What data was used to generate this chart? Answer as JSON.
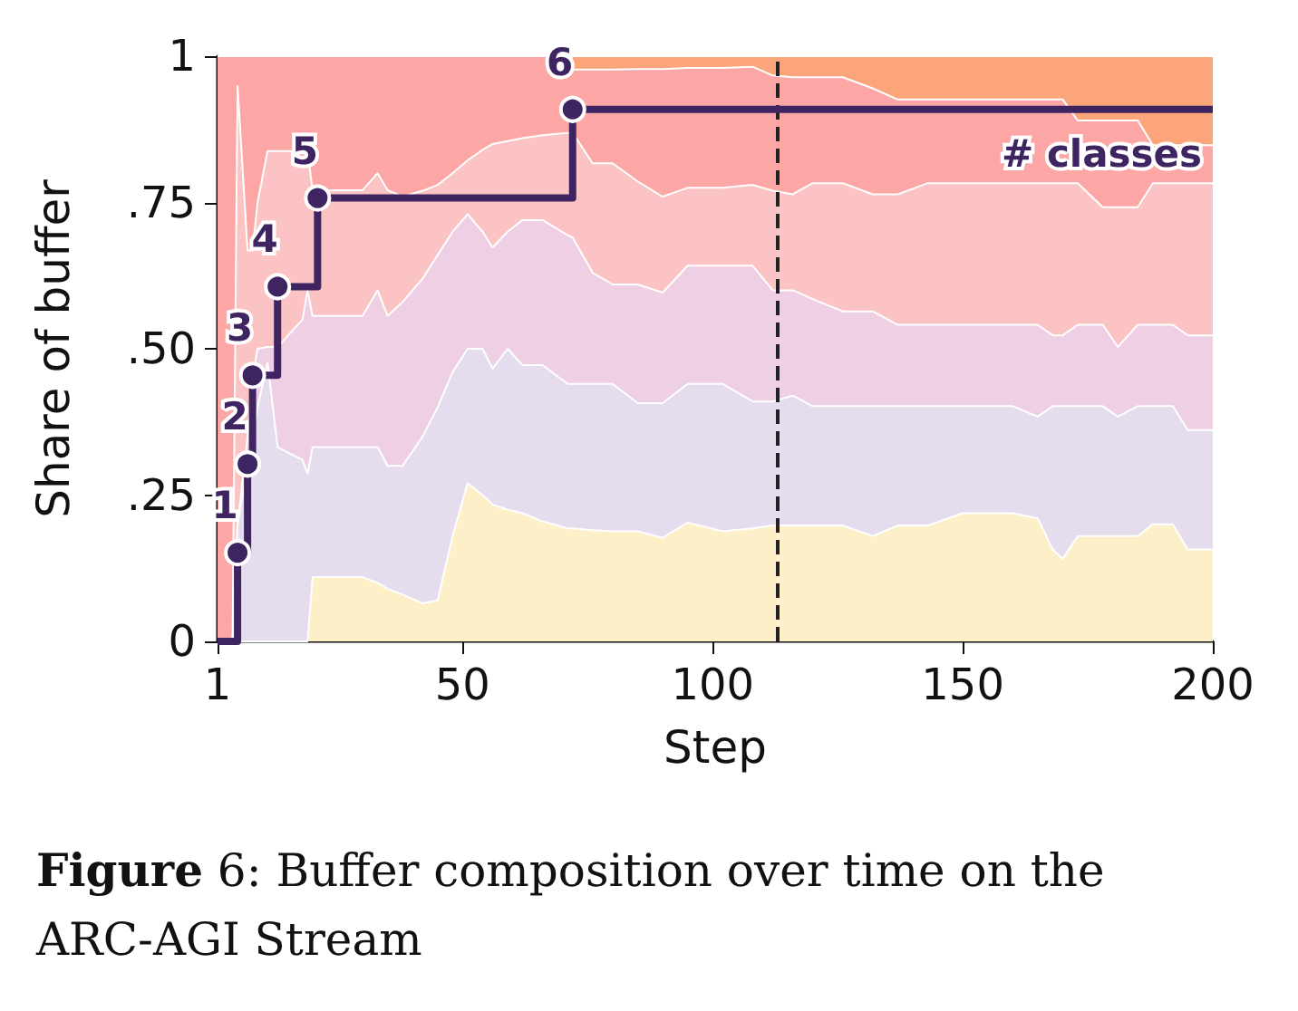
{
  "chart_data": {
    "type": "area",
    "stacked": true,
    "xlabel": "Step",
    "ylabel": "Share of buffer",
    "annotations": [
      "Figure 6: Buffer composition over time on the ARC-AGI Stream"
    ],
    "x": [
      1,
      4,
      5,
      7,
      8,
      9,
      11,
      13,
      18,
      19,
      20,
      25,
      30,
      33,
      35,
      38,
      42,
      45,
      48,
      51,
      54,
      56,
      59,
      62,
      66,
      71,
      72,
      76,
      80,
      85,
      90,
      95,
      102,
      108,
      112,
      116,
      120,
      126,
      132,
      137,
      143,
      150,
      160,
      165,
      168,
      170,
      173,
      178,
      181,
      185,
      188,
      192,
      195,
      200
    ],
    "xlim": [
      1,
      200
    ],
    "xticks": [
      1,
      50,
      100,
      150,
      200
    ],
    "ylim": [
      0,
      1
    ],
    "yticks": [
      0,
      {
        "value": 0.25,
        "label": ".25"
      },
      {
        "value": 0.5,
        "label": ".50"
      },
      {
        "value": 0.75,
        "label": ".75"
      },
      1
    ],
    "y2lim": [
      0,
      6.6
    ],
    "grid": false,
    "legend": false,
    "ref_lines": [
      {
        "axis": "x",
        "value": 113,
        "color": "#222222",
        "line_style": "dashed"
      }
    ],
    "series": [
      {
        "color": "#fdefc8",
        "values": [
          0,
          0,
          0,
          0,
          0,
          0,
          0,
          0,
          0,
          0,
          0.11,
          0.11,
          0.11,
          0.1,
          0.09,
          0.08,
          0.065,
          0.07,
          0.18,
          0.27,
          0.25,
          0.234,
          0.225,
          0.219,
          0.205,
          0.193,
          0.193,
          0.19,
          0.188,
          0.188,
          0.177,
          0.203,
          0.188,
          0.193,
          0.198,
          0.198,
          0.198,
          0.198,
          0.18,
          0.198,
          0.198,
          0.219,
          0.219,
          0.21,
          0.157,
          0.141,
          0.18,
          0.18,
          0.18,
          0.18,
          0.2,
          0.2,
          0.157,
          0.157
        ]
      },
      {
        "color": "#e5dcee",
        "values": [
          0,
          0,
          0.2,
          0.3,
          0.35,
          0.4,
          0.477,
          0.332,
          0.31,
          0.286,
          0.222,
          0.222,
          0.222,
          0.232,
          0.21,
          0.22,
          0.285,
          0.33,
          0.28,
          0.23,
          0.25,
          0.232,
          0.275,
          0.253,
          0.267,
          0.247,
          0.247,
          0.25,
          0.252,
          0.219,
          0.23,
          0.237,
          0.252,
          0.217,
          0.212,
          0.222,
          0.204,
          0.204,
          0.222,
          0.204,
          0.204,
          0.183,
          0.183,
          0.174,
          0.245,
          0.261,
          0.222,
          0.222,
          0.204,
          0.222,
          0.202,
          0.202,
          0.204,
          0.204
        ]
      },
      {
        "color": "#efcfe4",
        "values": [
          0,
          0,
          0,
          0.05,
          0.1,
          0.1,
          0.026,
          0.171,
          0.24,
          0.314,
          0.224,
          0.224,
          0.224,
          0.268,
          0.256,
          0.28,
          0.27,
          0.26,
          0.24,
          0.23,
          0.2,
          0.207,
          0.2,
          0.248,
          0.248,
          0.254,
          0.25,
          0.19,
          0.17,
          0.203,
          0.189,
          0.202,
          0.202,
          0.232,
          0.19,
          0.18,
          0.183,
          0.162,
          0.162,
          0.139,
          0.139,
          0.139,
          0.139,
          0.157,
          0.121,
          0.121,
          0.139,
          0.139,
          0.119,
          0.139,
          0.139,
          0.139,
          0.162,
          0.162
        ]
      },
      {
        "color": "#fbc3c3",
        "values": [
          0,
          0,
          0.75,
          0.318,
          0.218,
          0.25,
          0.335,
          0.335,
          0.288,
          0.238,
          0.214,
          0.215,
          0.215,
          0.2,
          0.215,
          0.18,
          0.15,
          0.12,
          0.1,
          0.092,
          0.14,
          0.177,
          0.155,
          0.14,
          0.145,
          0.175,
          0.179,
          0.187,
          0.207,
          0.176,
          0.164,
          0.133,
          0.133,
          0.138,
          0.17,
          0.164,
          0.198,
          0.219,
          0.2,
          0.223,
          0.242,
          0.242,
          0.242,
          0.242,
          0.26,
          0.26,
          0.242,
          0.201,
          0.239,
          0.201,
          0.242,
          0.242,
          0.26,
          0.26
        ]
      },
      {
        "color": "#fca7a6",
        "values": [
          1,
          1,
          0.05,
          0.332,
          0.332,
          0.25,
          0.162,
          0.162,
          0.162,
          0.162,
          0.23,
          0.229,
          0.229,
          0.2,
          0.229,
          0.24,
          0.23,
          0.22,
          0.2,
          0.178,
          0.16,
          0.15,
          0.145,
          0.14,
          0.135,
          0.131,
          0.108,
          0.16,
          0.16,
          0.192,
          0.218,
          0.205,
          0.205,
          0.202,
          0.197,
          0.2,
          0.181,
          0.181,
          0.181,
          0.162,
          0.143,
          0.143,
          0.143,
          0.143,
          0.143,
          0.143,
          0.107,
          0.148,
          0.148,
          0.148,
          0.065,
          0.065,
          0.065,
          0.065
        ]
      },
      {
        "color": "#fca47a",
        "values": [
          null,
          null,
          null,
          null,
          null,
          null,
          null,
          null,
          null,
          null,
          null,
          null,
          null,
          null,
          null,
          null,
          null,
          null,
          null,
          null,
          null,
          null,
          null,
          null,
          null,
          null,
          0.023,
          0.023,
          0.023,
          0.022,
          0.022,
          0.02,
          0.02,
          0.018,
          0.033,
          0.036,
          0.036,
          0.036,
          0.055,
          0.074,
          0.074,
          0.074,
          0.074,
          0.074,
          0.074,
          0.074,
          0.11,
          0.11,
          0.11,
          0.11,
          0.152,
          0.152,
          0.152,
          0.152
        ]
      },
      {
        "type": "step",
        "name": "# classes",
        "axis": "y2",
        "color": "#3f2462",
        "marker": "circle",
        "line_style": "solid",
        "x": [
          1,
          5,
          7,
          8,
          13,
          21,
          72,
          200
        ],
        "values": [
          0,
          1,
          2,
          3,
          4,
          5,
          6,
          6
        ],
        "value_labels": [
          null,
          "1",
          "2",
          "3",
          "4",
          "5",
          "6",
          null
        ]
      }
    ]
  }
}
